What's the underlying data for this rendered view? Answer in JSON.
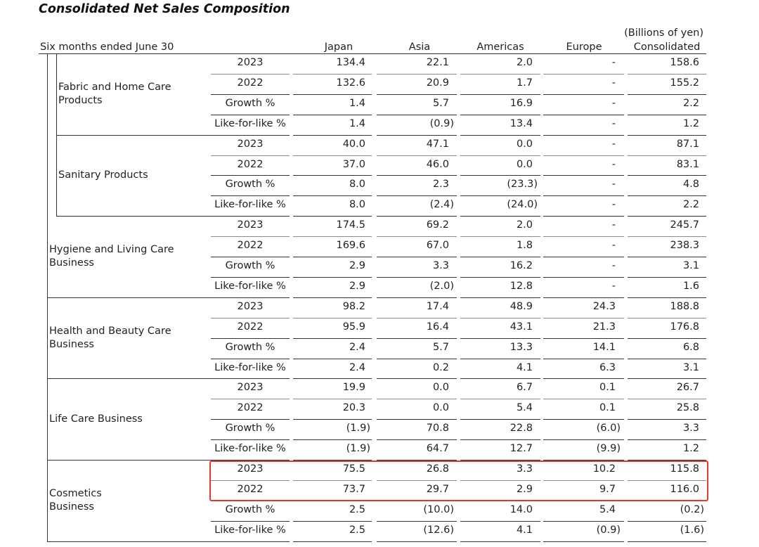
{
  "title": "Consolidated Net Sales Composition",
  "unit_note": "(Billions of yen)",
  "header": {
    "period_label": "Six months ended June 30",
    "columns": [
      "Japan",
      "Asia",
      "Americas",
      "Europe",
      "Consolidated"
    ]
  },
  "segments": [
    {
      "label": [
        "Hygiene and Living Care",
        "Business"
      ],
      "sub_segments": [
        {
          "label": [
            "Fabric and Home Care",
            "Products"
          ],
          "rows": [
            {
              "label": "2023",
              "values": [
                "134.4",
                "22.1",
                "2.0",
                "-",
                "158.6"
              ]
            },
            {
              "label": "2022",
              "values": [
                "132.6",
                "20.9",
                "1.7",
                "-",
                "155.2"
              ]
            },
            {
              "label": "Growth %",
              "values": [
                "1.4",
                "5.7",
                "16.9",
                "-",
                "2.2"
              ]
            },
            {
              "label": "Like-for-like %",
              "values": [
                "1.4",
                "(0.9)",
                "13.4",
                "-",
                "1.2"
              ]
            }
          ]
        },
        {
          "label": [
            "Sanitary Products"
          ],
          "rows": [
            {
              "label": "2023",
              "values": [
                "40.0",
                "47.1",
                "0.0",
                "-",
                "87.1"
              ]
            },
            {
              "label": "2022",
              "values": [
                "37.0",
                "46.0",
                "0.0",
                "-",
                "83.1"
              ]
            },
            {
              "label": "Growth %",
              "values": [
                "8.0",
                "2.3",
                "(23.3)",
                "-",
                "4.8"
              ]
            },
            {
              "label": "Like-for-like %",
              "values": [
                "8.0",
                "(2.4)",
                "(24.0)",
                "-",
                "2.2"
              ]
            }
          ]
        }
      ],
      "rows": [
        {
          "label": "2023",
          "values": [
            "174.5",
            "69.2",
            "2.0",
            "-",
            "245.7"
          ]
        },
        {
          "label": "2022",
          "values": [
            "169.6",
            "67.0",
            "1.8",
            "-",
            "238.3"
          ]
        },
        {
          "label": "Growth %",
          "values": [
            "2.9",
            "3.3",
            "16.2",
            "-",
            "3.1"
          ]
        },
        {
          "label": "Like-for-like %",
          "values": [
            "2.9",
            "(2.0)",
            "12.8",
            "-",
            "1.6"
          ]
        }
      ]
    },
    {
      "label": [
        "Health and Beauty Care",
        "Business"
      ],
      "rows": [
        {
          "label": "2023",
          "values": [
            "98.2",
            "17.4",
            "48.9",
            "24.3",
            "188.8"
          ]
        },
        {
          "label": "2022",
          "values": [
            "95.9",
            "16.4",
            "43.1",
            "21.3",
            "176.8"
          ]
        },
        {
          "label": "Growth %",
          "values": [
            "2.4",
            "5.7",
            "13.3",
            "14.1",
            "6.8"
          ]
        },
        {
          "label": "Like-for-like %",
          "values": [
            "2.4",
            "0.2",
            "4.1",
            "6.3",
            "3.1"
          ]
        }
      ]
    },
    {
      "label": [
        "Life Care Business"
      ],
      "rows": [
        {
          "label": "2023",
          "values": [
            "19.9",
            "0.0",
            "6.7",
            "0.1",
            "26.7"
          ]
        },
        {
          "label": "2022",
          "values": [
            "20.3",
            "0.0",
            "5.4",
            "0.1",
            "25.8"
          ]
        },
        {
          "label": "Growth %",
          "values": [
            "(1.9)",
            "70.8",
            "22.8",
            "(6.0)",
            "3.3"
          ]
        },
        {
          "label": "Like-for-like %",
          "values": [
            "(1.9)",
            "64.7",
            "12.7",
            "(9.9)",
            "1.2"
          ]
        }
      ]
    },
    {
      "label": [
        "Cosmetics",
        "Business"
      ],
      "rows": [
        {
          "label": "2023",
          "values": [
            "75.5",
            "26.8",
            "3.3",
            "10.2",
            "115.8"
          ]
        },
        {
          "label": "2022",
          "values": [
            "73.7",
            "29.7",
            "2.9",
            "9.7",
            "116.0"
          ]
        },
        {
          "label": "Growth %",
          "values": [
            "2.5",
            "(10.0)",
            "14.0",
            "5.4",
            "(0.2)"
          ]
        },
        {
          "label": "Like-for-like %",
          "values": [
            "2.5",
            "(12.6)",
            "4.1",
            "(0.9)",
            "(1.6)"
          ]
        }
      ]
    }
  ],
  "highlight": {
    "segment_index": 3,
    "row_indices": [
      0,
      1
    ],
    "color": "#e53a2f"
  }
}
